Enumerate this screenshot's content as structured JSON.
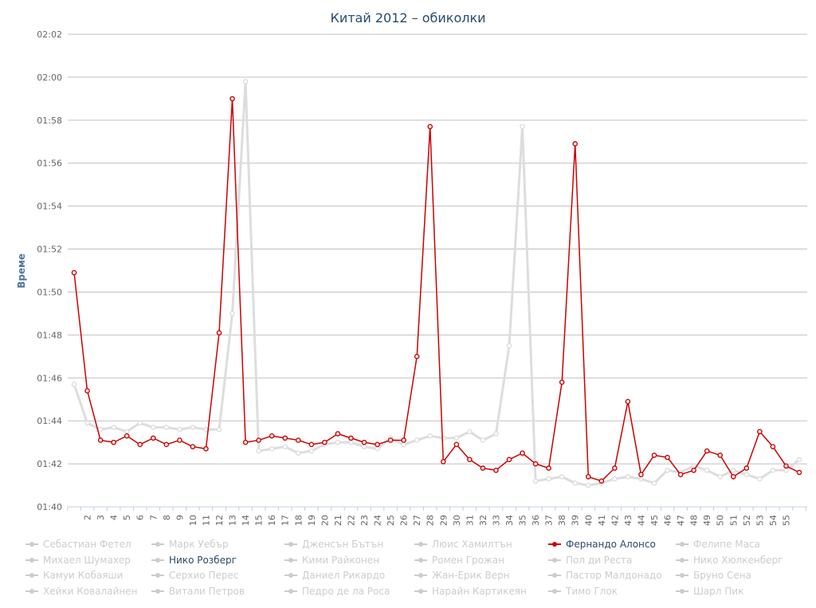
{
  "chart_data": {
    "type": "line",
    "title": "Китай 2012 – обиколки",
    "ylabel": "Време",
    "y_ticks": [
      "01:40",
      "01:42",
      "01:44",
      "01:46",
      "01:48",
      "01:50",
      "01:52",
      "01:54",
      "01:56",
      "01:58",
      "02:00",
      "02:02"
    ],
    "ylim_seconds": [
      100,
      122
    ],
    "x_tick_labels": [
      "2",
      "3",
      "4",
      "5",
      "6",
      "7",
      "8",
      "9",
      "10",
      "11",
      "12",
      "13",
      "14",
      "15",
      "16",
      "17",
      "18",
      "19",
      "20",
      "21",
      "22",
      "23",
      "24",
      "25",
      "26",
      "27",
      "28",
      "29",
      "30",
      "31",
      "32",
      "33",
      "34",
      "35",
      "36",
      "37",
      "38",
      "39",
      "40",
      "41",
      "42",
      "43",
      "44",
      "45",
      "46",
      "47",
      "48",
      "49",
      "50",
      "51",
      "52",
      "53",
      "54",
      "55"
    ],
    "laps": [
      1,
      2,
      3,
      4,
      5,
      6,
      7,
      8,
      9,
      10,
      11,
      12,
      13,
      14,
      15,
      16,
      17,
      18,
      19,
      20,
      21,
      22,
      23,
      24,
      25,
      26,
      27,
      28,
      29,
      30,
      31,
      32,
      33,
      34,
      35,
      36,
      37,
      38,
      39,
      40,
      41,
      42,
      43,
      44,
      45,
      46,
      47,
      48,
      49,
      50,
      51,
      52,
      53,
      54,
      55,
      56
    ],
    "series": [
      {
        "name": "Фернандо Алонсо",
        "color": "#cc0000",
        "visible": true,
        "values": [
          110.9,
          105.4,
          103.1,
          103.0,
          103.3,
          102.9,
          103.2,
          102.9,
          103.1,
          102.8,
          102.7,
          108.1,
          119.0,
          103.0,
          103.1,
          103.3,
          103.2,
          103.1,
          102.9,
          103.0,
          103.4,
          103.2,
          103.0,
          102.9,
          103.1,
          103.1,
          107.0,
          117.7,
          102.1,
          102.9,
          102.2,
          101.8,
          101.7,
          102.2,
          102.5,
          102.0,
          101.8,
          105.8,
          116.9,
          101.4,
          101.2,
          101.8,
          104.9,
          101.5,
          102.4,
          102.3,
          101.5,
          101.7,
          102.6,
          102.4,
          101.4,
          101.8,
          103.5,
          102.8,
          101.9,
          101.6
        ]
      },
      {
        "name": "Нико Розберг",
        "color": "#dddddd",
        "visible": true,
        "values": [
          105.7,
          103.9,
          103.6,
          103.7,
          103.5,
          103.9,
          103.7,
          103.7,
          103.6,
          103.7,
          103.6,
          103.6,
          109.0,
          119.8,
          102.6,
          102.7,
          102.8,
          102.5,
          102.6,
          102.9,
          103.0,
          103.0,
          102.8,
          102.7,
          103.2,
          102.9,
          103.1,
          103.3,
          103.2,
          103.2,
          103.5,
          103.1,
          103.4,
          107.5,
          117.7,
          101.2,
          101.3,
          101.4,
          101.1,
          101.0,
          101.1,
          101.3,
          101.4,
          101.3,
          101.1,
          101.7,
          101.6,
          101.9,
          101.7,
          101.4,
          101.7,
          101.5,
          101.3,
          101.7,
          101.7,
          102.2
        ]
      }
    ],
    "legend": {
      "position": "bottom",
      "active_color": "#cc0000",
      "inactive_color": "#cccccc",
      "items": [
        {
          "name": "Себастиан Фетел",
          "active": false
        },
        {
          "name": "Марк Уебър",
          "active": false
        },
        {
          "name": "Дженсън Бътън",
          "active": false
        },
        {
          "name": "Люис Хамилтън",
          "active": false
        },
        {
          "name": "Фернандо Алонсо",
          "active": true
        },
        {
          "name": "Фелипе Маса",
          "active": false
        },
        {
          "name": "Михаел Шумахер",
          "active": false
        },
        {
          "name": "Нико Розберг",
          "active": true
        },
        {
          "name": "Кими Райконен",
          "active": false
        },
        {
          "name": "Ромен Грожан",
          "active": false
        },
        {
          "name": "Пол ди Реста",
          "active": false
        },
        {
          "name": "Нико Хюлкенберг",
          "active": false
        },
        {
          "name": "Камуи Кобаяши",
          "active": false
        },
        {
          "name": "Серхио Перес",
          "active": false
        },
        {
          "name": "Даниел Рикардо",
          "active": false
        },
        {
          "name": "Жан-Ерик Верн",
          "active": false
        },
        {
          "name": "Пастор Малдонадо",
          "active": false
        },
        {
          "name": "Бруно Сена",
          "active": false
        },
        {
          "name": "Хейки Ковалайнен",
          "active": false
        },
        {
          "name": "Витали Петров",
          "active": false
        },
        {
          "name": "Педро де ла Роса",
          "active": false
        },
        {
          "name": "Нарайн Картикеян",
          "active": false
        },
        {
          "name": "Тимо Глок",
          "active": false
        },
        {
          "name": "Шарл Пик",
          "active": false
        }
      ]
    }
  }
}
